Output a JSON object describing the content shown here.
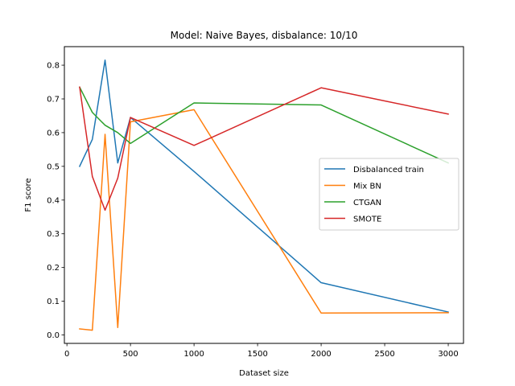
{
  "chart_data": {
    "type": "line",
    "title": "Model: Naive Bayes, disbalance: 10/10",
    "xlabel": "Dataset size",
    "ylabel": "F1 score",
    "xlim": [
      -20,
      3120
    ],
    "ylim": [
      -0.025,
      0.855
    ],
    "xticks": [
      0,
      500,
      1000,
      1500,
      2000,
      2500,
      3000
    ],
    "yticks": [
      0.0,
      0.1,
      0.2,
      0.3,
      0.4,
      0.5,
      0.6,
      0.7,
      0.8
    ],
    "xtick_labels": [
      "0",
      "500",
      "1000",
      "1500",
      "2000",
      "2500",
      "3000"
    ],
    "ytick_labels": [
      "0.0",
      "0.1",
      "0.2",
      "0.3",
      "0.4",
      "0.5",
      "0.6",
      "0.7",
      "0.8"
    ],
    "grid": false,
    "legend_position": "center-right",
    "series": [
      {
        "name": "Disbalanced train",
        "color": "#1f77b4",
        "x": [
          100,
          200,
          300,
          400,
          500,
          1000,
          2000,
          3000
        ],
        "y": [
          0.5,
          0.58,
          0.815,
          0.51,
          0.645,
          0.485,
          0.155,
          0.068
        ]
      },
      {
        "name": "Mix BN",
        "color": "#ff7f0e",
        "x": [
          100,
          200,
          300,
          400,
          500,
          1000,
          2000,
          3000
        ],
        "y": [
          0.018,
          0.014,
          0.595,
          0.022,
          0.632,
          0.668,
          0.065,
          0.066
        ]
      },
      {
        "name": "CTGAN",
        "color": "#2ca02c",
        "x": [
          100,
          200,
          300,
          400,
          500,
          1000,
          2000,
          3000
        ],
        "y": [
          0.735,
          0.66,
          0.622,
          0.6,
          0.568,
          0.688,
          0.682,
          0.51
        ]
      },
      {
        "name": "SMOTE",
        "color": "#d62728",
        "x": [
          100,
          200,
          300,
          400,
          500,
          1000,
          2000,
          3000
        ],
        "y": [
          0.735,
          0.47,
          0.37,
          0.465,
          0.645,
          0.562,
          0.733,
          0.655
        ]
      }
    ]
  }
}
